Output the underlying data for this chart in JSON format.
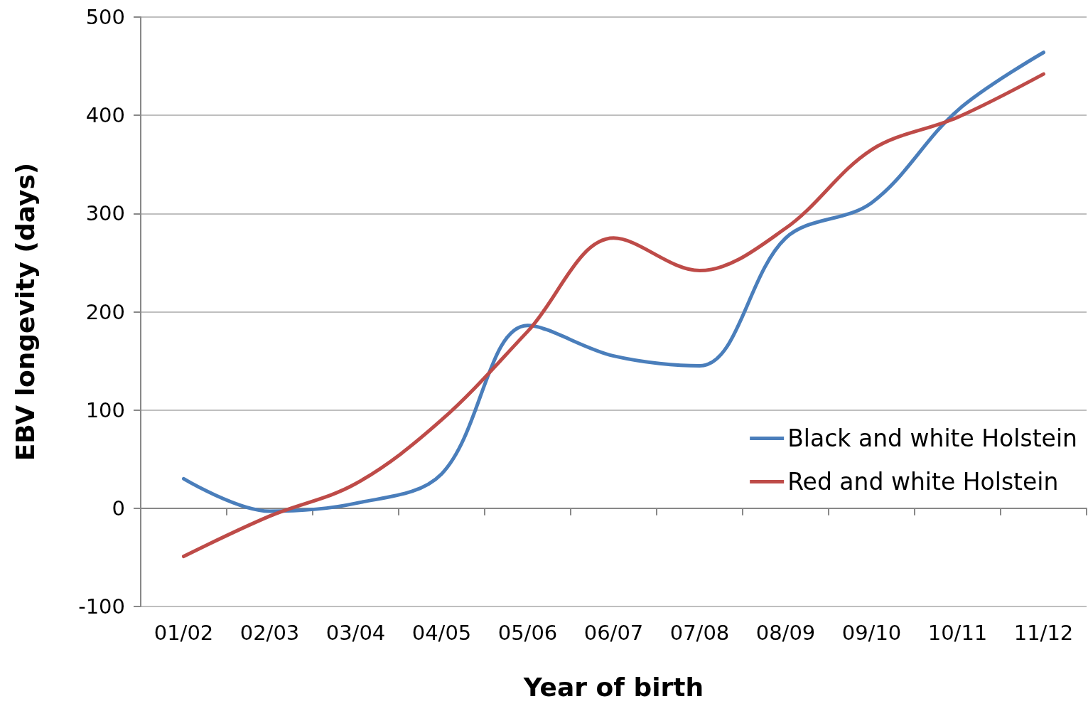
{
  "chart_data": {
    "type": "line",
    "xlabel": "Year of birth",
    "ylabel": "EBV longevity (days)",
    "categories": [
      "01/02",
      "02/03",
      "03/04",
      "04/05",
      "05/06",
      "06/07",
      "07/08",
      "08/09",
      "09/10",
      "10/11",
      "11/12"
    ],
    "series": [
      {
        "name": "Black and white Holstein",
        "color": "#4a7ebb",
        "values": [
          30,
          -3,
          5,
          35,
          186,
          155,
          145,
          275,
          311,
          405,
          464
        ]
      },
      {
        "name": "Red and white Holstein",
        "color": "#be4b48",
        "values": [
          -49,
          -8,
          25,
          90,
          180,
          275,
          242,
          285,
          365,
          398,
          442
        ]
      }
    ],
    "ylim": [
      -100,
      500
    ],
    "yticks": [
      -100,
      0,
      100,
      200,
      300,
      400,
      500
    ],
    "grid": "y",
    "legend": "right",
    "marker": "none",
    "line_style": "solid"
  }
}
